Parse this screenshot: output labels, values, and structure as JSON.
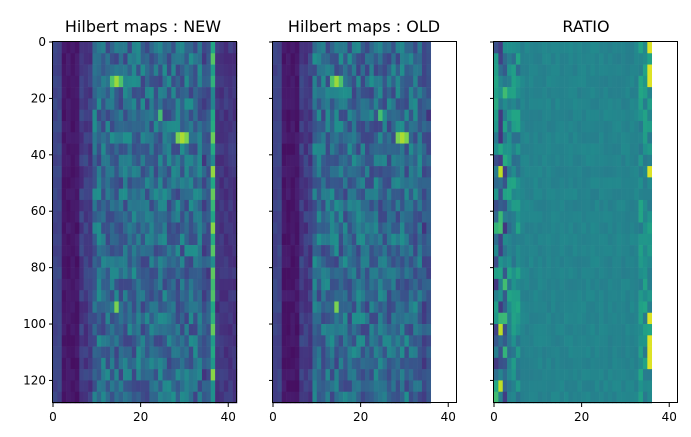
{
  "chart_data": [
    {
      "type": "heatmap",
      "title": "Hilbert maps : NEW",
      "colormap": "viridis",
      "xlim": [
        0,
        42
      ],
      "ylim": [
        128,
        0
      ],
      "x_ticks": [
        "0",
        "20",
        "40"
      ],
      "y_ticks": [
        "0",
        "20",
        "40",
        "60",
        "80",
        "100",
        "120"
      ],
      "data_columns": 42,
      "data_rows": 128,
      "nan_from_column": 42,
      "features": [
        {
          "label": "bright hotspot",
          "x": 12,
          "y": 74,
          "value": 1.0
        },
        {
          "label": "bright hotspot",
          "x": 29,
          "y": 31,
          "value": 0.95
        },
        {
          "label": "bright hotspot",
          "x": 19,
          "y": 18,
          "value": 0.9
        },
        {
          "label": "bright edge band",
          "x": 37,
          "y": 50,
          "value": 0.8
        }
      ]
    },
    {
      "type": "heatmap",
      "title": "Hilbert maps : OLD",
      "colormap": "viridis",
      "xlim": [
        0,
        42
      ],
      "ylim": [
        128,
        0
      ],
      "x_ticks": [
        "0",
        "20",
        "40"
      ],
      "y_ticks": [
        "0",
        "20",
        "40",
        "60",
        "80",
        "100",
        "120"
      ],
      "data_columns": 36,
      "data_rows": 128,
      "nan_from_column": 36,
      "features": [
        {
          "label": "bright hotspot",
          "x": 12,
          "y": 74,
          "value": 1.0
        },
        {
          "label": "bright hotspot",
          "x": 29,
          "y": 31,
          "value": 0.95
        },
        {
          "label": "bright hotspot",
          "x": 19,
          "y": 18,
          "value": 0.9
        }
      ]
    },
    {
      "type": "heatmap",
      "title": "RATIO",
      "colormap": "viridis",
      "xlim": [
        0,
        42
      ],
      "ylim": [
        128,
        0
      ],
      "x_ticks": [
        "0",
        "20",
        "40"
      ],
      "y_ticks": [],
      "data_columns": 36,
      "data_rows": 128,
      "nan_from_column": 36,
      "features": [
        {
          "label": "uniform ratio",
          "value": 0.45
        },
        {
          "label": "noisy left edge",
          "x": 3,
          "y": 64,
          "value": 0.3
        },
        {
          "label": "yellow right edge",
          "x": 35,
          "y": 64,
          "value": 0.9
        }
      ]
    }
  ]
}
